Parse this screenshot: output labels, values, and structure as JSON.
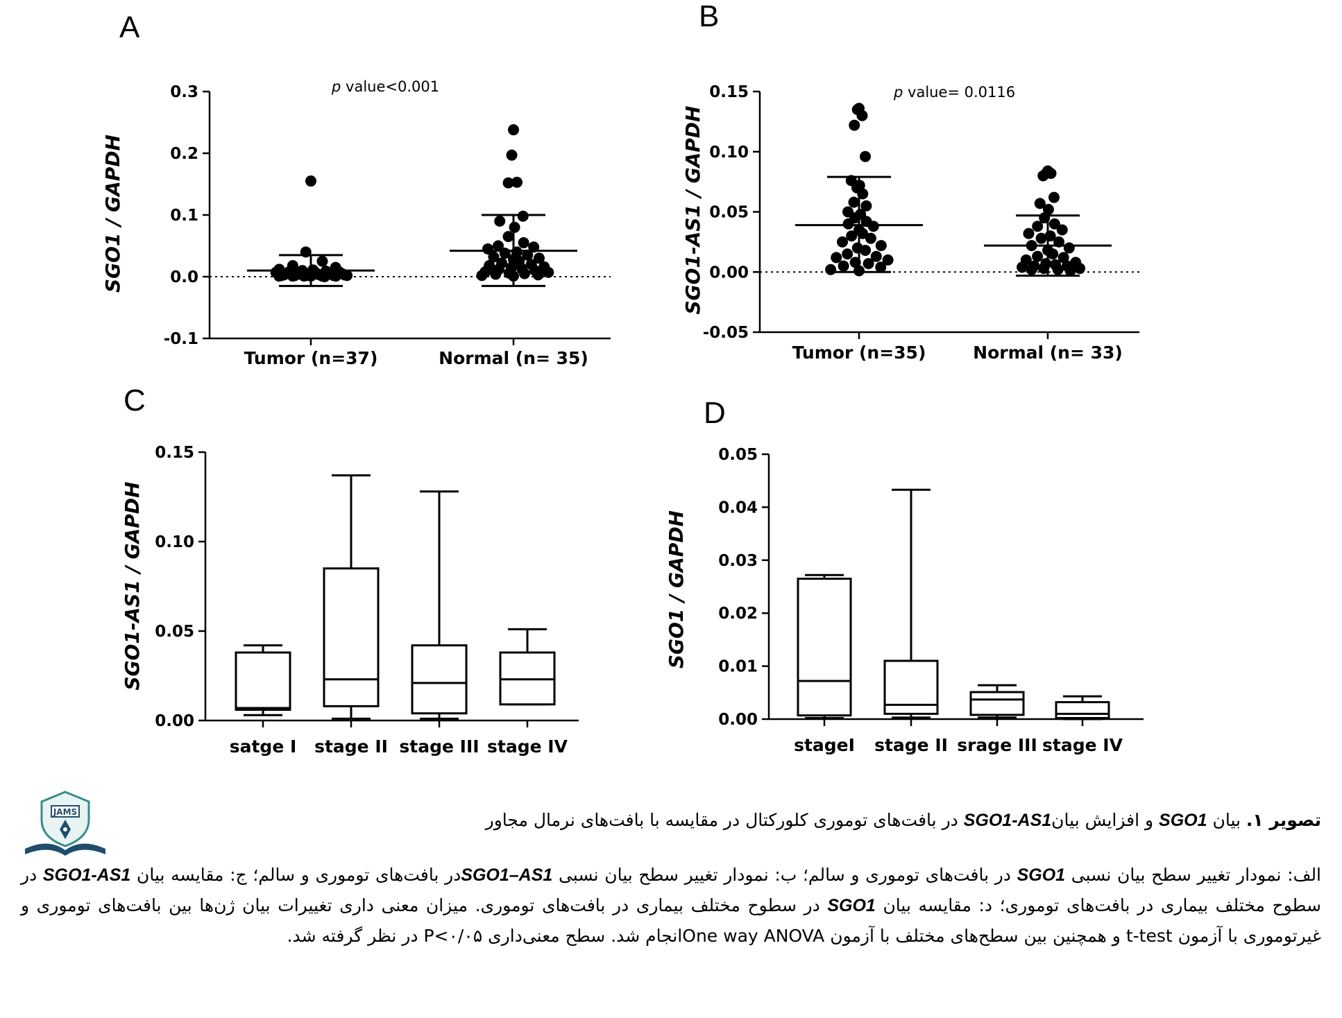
{
  "chart_data": [
    {
      "panel": "A",
      "type": "scatter",
      "ylabel": "SGO1 / GAPDH",
      "ylim": [
        -0.1,
        0.3
      ],
      "yticks": [
        -0.1,
        0.0,
        0.1,
        0.2,
        0.3
      ],
      "ytick_labels": [
        "-0.1",
        "0.0",
        "0.1",
        "0.2",
        "0.3"
      ],
      "categories": [
        "Tumor (n=37)",
        "Normal (n= 35)"
      ],
      "annotation": {
        "p": "p",
        "text": " value<0.001"
      },
      "reference_line": 0,
      "groups": [
        {
          "mean": 0.01,
          "sd_upper": 0.035,
          "sd_lower": -0.015,
          "values": [
            0.155,
            0.04,
            0.025,
            0.018,
            0.015,
            0.012,
            0.011,
            0.01,
            0.009,
            0.008,
            0.008,
            0.007,
            0.007,
            0.006,
            0.006,
            0.005,
            0.005,
            0.005,
            0.004,
            0.004,
            0.004,
            0.003,
            0.003,
            0.003,
            0.003,
            0.002,
            0.002,
            0.002,
            0.002,
            0.002,
            0.001,
            0.001,
            0.001,
            0.001,
            0.001,
            0.001,
            0.0
          ]
        },
        {
          "mean": 0.042,
          "sd_upper": 0.1,
          "sd_lower": -0.015,
          "values": [
            0.238,
            0.197,
            0.153,
            0.152,
            0.098,
            0.09,
            0.08,
            0.065,
            0.055,
            0.05,
            0.048,
            0.045,
            0.04,
            0.038,
            0.035,
            0.032,
            0.03,
            0.028,
            0.025,
            0.022,
            0.02,
            0.018,
            0.016,
            0.015,
            0.013,
            0.012,
            0.01,
            0.008,
            0.007,
            0.006,
            0.005,
            0.004,
            0.003,
            0.002,
            0.001
          ]
        }
      ]
    },
    {
      "panel": "B",
      "type": "scatter",
      "ylabel": "SGO1-AS1 / GAPDH",
      "ylim": [
        -0.05,
        0.15
      ],
      "yticks": [
        -0.05,
        0.0,
        0.05,
        0.1,
        0.15
      ],
      "ytick_labels": [
        "-0.05",
        "0.00",
        "0.05",
        "0.10",
        "0.15"
      ],
      "categories": [
        "Tumor (n=35)",
        "Normal (n= 33)"
      ],
      "annotation": {
        "p": "p",
        "text": " value= 0.0116"
      },
      "reference_line": 0,
      "groups": [
        {
          "mean": 0.039,
          "sd_upper": 0.079,
          "sd_lower": 0.0,
          "values": [
            0.136,
            0.135,
            0.13,
            0.122,
            0.096,
            0.076,
            0.072,
            0.07,
            0.065,
            0.058,
            0.055,
            0.05,
            0.048,
            0.045,
            0.042,
            0.04,
            0.038,
            0.035,
            0.032,
            0.03,
            0.028,
            0.025,
            0.022,
            0.02,
            0.018,
            0.015,
            0.013,
            0.012,
            0.01,
            0.008,
            0.007,
            0.005,
            0.004,
            0.002,
            0.001
          ]
        },
        {
          "mean": 0.022,
          "sd_upper": 0.047,
          "sd_lower": -0.003,
          "values": [
            0.084,
            0.082,
            0.082,
            0.08,
            0.062,
            0.057,
            0.052,
            0.045,
            0.04,
            0.038,
            0.035,
            0.032,
            0.03,
            0.028,
            0.025,
            0.022,
            0.02,
            0.018,
            0.015,
            0.013,
            0.012,
            0.01,
            0.008,
            0.007,
            0.006,
            0.005,
            0.005,
            0.004,
            0.003,
            0.003,
            0.002,
            0.002,
            0.001
          ]
        }
      ]
    },
    {
      "panel": "C",
      "type": "box",
      "ylabel": "SGO1-AS1 / GAPDH",
      "ylim": [
        0,
        0.15
      ],
      "yticks": [
        0.0,
        0.05,
        0.1,
        0.15
      ],
      "ytick_labels": [
        "0.00",
        "0.05",
        "0.10",
        "0.15"
      ],
      "categories": [
        "satge I",
        "stage II",
        "stage III",
        "stage IV"
      ],
      "boxes": [
        {
          "min": 0.003,
          "q1": 0.006,
          "median": 0.007,
          "q3": 0.038,
          "max": 0.042
        },
        {
          "min": 0.001,
          "q1": 0.008,
          "median": 0.023,
          "q3": 0.085,
          "max": 0.137
        },
        {
          "min": 0.001,
          "q1": 0.004,
          "median": 0.021,
          "q3": 0.042,
          "max": 0.128
        },
        {
          "min": 0.009,
          "q1": 0.009,
          "median": 0.023,
          "q3": 0.038,
          "max": 0.051
        }
      ]
    },
    {
      "panel": "D",
      "type": "box",
      "ylabel": "SGO1 / GAPDH",
      "ylim": [
        0,
        0.05
      ],
      "yticks": [
        0.0,
        0.01,
        0.02,
        0.03,
        0.04,
        0.05
      ],
      "ytick_labels": [
        "0.00",
        "0.01",
        "0.02",
        "0.03",
        "0.04",
        "0.05"
      ],
      "categories": [
        "stageI",
        "stage II",
        "srage III",
        "stage IV"
      ],
      "boxes": [
        {
          "min": 0.0002,
          "q1": 0.0007,
          "median": 0.0072,
          "q3": 0.0265,
          "max": 0.0272
        },
        {
          "min": 0.0003,
          "q1": 0.001,
          "median": 0.0027,
          "q3": 0.011,
          "max": 0.0433
        },
        {
          "min": 0.0003,
          "q1": 0.0008,
          "median": 0.0037,
          "q3": 0.0051,
          "max": 0.0064
        },
        {
          "min": 0.0,
          "q1": 0.0002,
          "median": 0.001,
          "q3": 0.0032,
          "max": 0.0043
        }
      ]
    }
  ],
  "logo": {
    "text": "JAMS"
  },
  "caption": {
    "title_prefix": "تصویر ۱.",
    "title_part1": " بیان ",
    "title_gene1": "SGO1",
    "title_part2": " و افزایش بیان",
    "title_gene2": "SGO1-AS1",
    "title_part3": "  در بافت‌های توموری کلورکتال در مقایسه با بافت‌های نرمال مجاور",
    "body_1": "الف: نمودار تغییر سطح بیان نسبی ",
    "body_gene1": "SGO1",
    "body_2": " در بافت‌های توموری و سالم؛ ب: نمودار تغییر سطح بیان نسبی ",
    "body_gene2": "SGO1–AS1",
    "body_3": "در بافت‌های توموری و سالم؛ ج: مقایسه بیان ",
    "body_gene3": "SGO1-AS1",
    "body_4": " در سطوح مختلف بیماری در بافت‌های توموری؛ د: مقایسه بیان ",
    "body_gene4": "SGO1",
    "body_5": " در سطوح مختلف بیماری در بافت‌های توموری. میزان معنی داری تغییرات بیان ژن‌ها بین بافت‌های توموری و غیرتوموری با آزمون ",
    "body_ttest": "t-test",
    "body_6": " و همچنین بین سطح‌های مختلف با آزمون ",
    "body_anova": "One way ANOVA",
    "body_7": "انجام شد. سطح معنی‌داری ",
    "body_p": "P<۰/۰۵",
    "body_8": " در نظر گرفته شد."
  }
}
